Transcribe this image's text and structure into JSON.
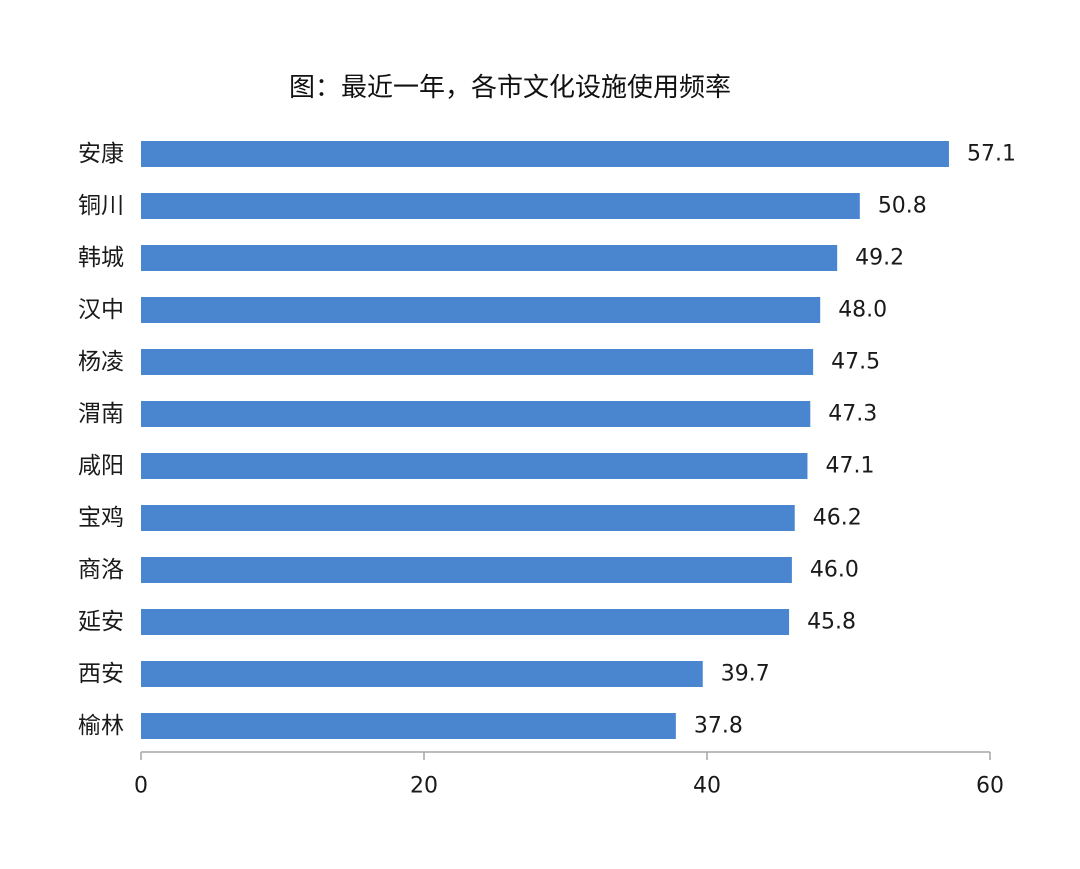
{
  "chart_data": {
    "type": "bar",
    "orientation": "horizontal",
    "title": "图：最近一年，各市文化设施使用频率",
    "xlabel": "",
    "ylabel": "",
    "categories": [
      "安康",
      "铜川",
      "韩城",
      "汉中",
      "杨凌",
      "渭南",
      "咸阳",
      "宝鸡",
      "商洛",
      "延安",
      "西安",
      "榆林"
    ],
    "values": [
      57.1,
      50.8,
      49.2,
      48.0,
      47.5,
      47.3,
      47.1,
      46.2,
      46.0,
      45.8,
      39.7,
      37.8
    ],
    "value_labels": [
      "57.1",
      "50.8",
      "49.2",
      "48.0",
      "47.5",
      "47.3",
      "47.1",
      "46.2",
      "46.0",
      "45.8",
      "39.7",
      "37.8"
    ],
    "xlim": [
      0,
      60
    ],
    "xticks": [
      0,
      20,
      40,
      60
    ],
    "xtick_labels": [
      "0",
      "20",
      "40",
      "60"
    ],
    "grid": false,
    "legend": "none",
    "bar_color": "#4a86cf",
    "axis_color": "#a6a6a6"
  }
}
